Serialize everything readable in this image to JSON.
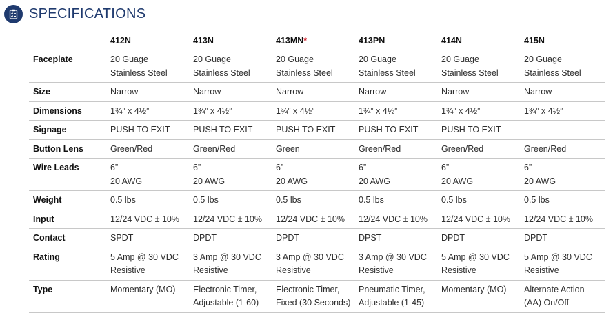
{
  "header": {
    "title": "SPECIFICATIONS",
    "icon": "checklist-icon",
    "accent_color": "#1f3a6e"
  },
  "table": {
    "columns": [
      {
        "model": "412N",
        "asterisk": ""
      },
      {
        "model": "413N",
        "asterisk": ""
      },
      {
        "model": "413MN",
        "asterisk": "*"
      },
      {
        "model": "413PN",
        "asterisk": ""
      },
      {
        "model": "414N",
        "asterisk": ""
      },
      {
        "model": "415N",
        "asterisk": ""
      }
    ],
    "rows": [
      {
        "label": "Faceplate",
        "cells": [
          [
            "20 Guage",
            "Stainless Steel"
          ],
          [
            "20 Guage",
            "Stainless Steel"
          ],
          [
            "20 Guage",
            "Stainless Steel"
          ],
          [
            "20 Guage",
            "Stainless Steel"
          ],
          [
            "20 Guage",
            "Stainless Steel"
          ],
          [
            "20 Guage",
            "Stainless Steel"
          ]
        ]
      },
      {
        "label": "Size",
        "cells": [
          [
            "Narrow"
          ],
          [
            "Narrow"
          ],
          [
            "Narrow"
          ],
          [
            "Narrow"
          ],
          [
            "Narrow"
          ],
          [
            "Narrow"
          ]
        ]
      },
      {
        "label": "Dimensions",
        "cells": [
          [
            "1¾” x 4½”"
          ],
          [
            "1¾” x 4½”"
          ],
          [
            "1¾” x 4½”"
          ],
          [
            "1¾” x 4½”"
          ],
          [
            "1¾” x 4½”"
          ],
          [
            "1¾” x 4½”"
          ]
        ]
      },
      {
        "label": "Signage",
        "cells": [
          [
            "PUSH TO EXIT"
          ],
          [
            "PUSH TO EXIT"
          ],
          [
            "PUSH TO EXIT"
          ],
          [
            "PUSH TO EXIT"
          ],
          [
            "PUSH TO EXIT"
          ],
          [
            "-----"
          ]
        ]
      },
      {
        "label": "Button Lens",
        "cells": [
          [
            "Green/Red"
          ],
          [
            "Green/Red"
          ],
          [
            "Green"
          ],
          [
            "Green/Red"
          ],
          [
            "Green/Red"
          ],
          [
            "Green/Red"
          ]
        ]
      },
      {
        "label": "Wire Leads",
        "cells": [
          [
            "6”",
            "20 AWG"
          ],
          [
            "6”",
            "20 AWG"
          ],
          [
            "6”",
            "20 AWG"
          ],
          [
            "6”",
            "20 AWG"
          ],
          [
            "6”",
            "20 AWG"
          ],
          [
            "6”",
            "20 AWG"
          ]
        ]
      },
      {
        "label": "Weight",
        "cells": [
          [
            "0.5 lbs"
          ],
          [
            "0.5 lbs"
          ],
          [
            "0.5 lbs"
          ],
          [
            "0.5 lbs"
          ],
          [
            "0.5 lbs"
          ],
          [
            "0.5 lbs"
          ]
        ]
      },
      {
        "label": "Input",
        "cells": [
          [
            "12/24 VDC ± 10%"
          ],
          [
            "12/24 VDC ± 10%"
          ],
          [
            "12/24 VDC ± 10%"
          ],
          [
            "12/24 VDC ± 10%"
          ],
          [
            "12/24 VDC ± 10%"
          ],
          [
            "12/24 VDC ± 10%"
          ]
        ]
      },
      {
        "label": "Contact",
        "cells": [
          [
            "SPDT"
          ],
          [
            "DPDT"
          ],
          [
            "DPDT"
          ],
          [
            "DPST"
          ],
          [
            "DPDT"
          ],
          [
            "DPDT"
          ]
        ]
      },
      {
        "label": "Rating",
        "cells": [
          [
            "5 Amp @ 30 VDC",
            "Resistive"
          ],
          [
            "3 Amp @ 30 VDC",
            "Resistive"
          ],
          [
            "3 Amp @ 30 VDC",
            "Resistive"
          ],
          [
            "3 Amp @ 30 VDC",
            "Resistive"
          ],
          [
            "5 Amp @ 30 VDC",
            "Resistive"
          ],
          [
            "5 Amp @ 30 VDC",
            "Resistive"
          ]
        ]
      },
      {
        "label": "Type",
        "cells": [
          [
            "Momentary (MO)"
          ],
          [
            "Electronic Timer,",
            "Adjustable (1-60)"
          ],
          [
            "Electronic Timer,",
            "Fixed (30 Seconds)"
          ],
          [
            "Pneumatic Timer,",
            "Adjustable (1-45)"
          ],
          [
            "Momentary (MO)"
          ],
          [
            "Alternate Action",
            "(AA) On/Off"
          ]
        ]
      }
    ]
  }
}
